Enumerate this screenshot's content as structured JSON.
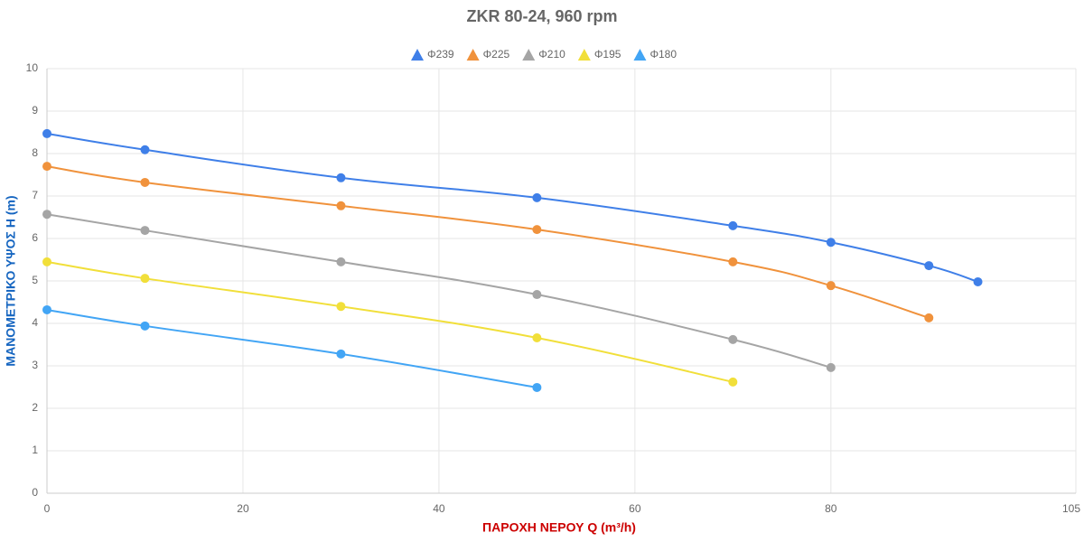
{
  "chart_data": {
    "type": "line",
    "title": "ZKR 80-24, 960 rpm",
    "x_label": "ΠΑΡΟΧΗ ΝΕΡΟΥ Q (m³/h)",
    "y_label": "ΜΑΝΟΜΕΤΡΙΚΟ ΥΨΟΣ H (m)",
    "xlim": [
      0,
      105
    ],
    "xticks": [
      0,
      20,
      40,
      60,
      80,
      105
    ],
    "ylim": [
      0,
      10
    ],
    "yticks": [
      0,
      1,
      2,
      3,
      4,
      5,
      6,
      7,
      8,
      9,
      10
    ],
    "grid": true,
    "legend": "top",
    "series": [
      {
        "name": "Φ239",
        "color": "#3f7fe8",
        "x": [
          0,
          10,
          30,
          50,
          70,
          80,
          90,
          95
        ],
        "values": [
          8.47,
          8.09,
          7.43,
          6.96,
          6.3,
          5.91,
          5.36,
          4.98
        ]
      },
      {
        "name": "Φ225",
        "color": "#f0923c",
        "x": [
          0,
          10,
          30,
          50,
          70,
          80,
          90
        ],
        "values": [
          7.7,
          7.32,
          6.77,
          6.21,
          5.45,
          4.89,
          4.13
        ]
      },
      {
        "name": "Φ210",
        "color": "#a5a5a5",
        "x": [
          0,
          10,
          30,
          50,
          70,
          80
        ],
        "values": [
          6.57,
          6.19,
          5.45,
          4.68,
          3.62,
          2.96
        ]
      },
      {
        "name": "Φ195",
        "color": "#f1df3a",
        "x": [
          0,
          10,
          30,
          50,
          70
        ],
        "values": [
          5.45,
          5.06,
          4.4,
          3.66,
          2.62
        ]
      },
      {
        "name": "Φ180",
        "color": "#42a5f5",
        "x": [
          0,
          10,
          30,
          50
        ],
        "values": [
          4.32,
          3.94,
          3.28,
          2.49
        ]
      }
    ]
  }
}
